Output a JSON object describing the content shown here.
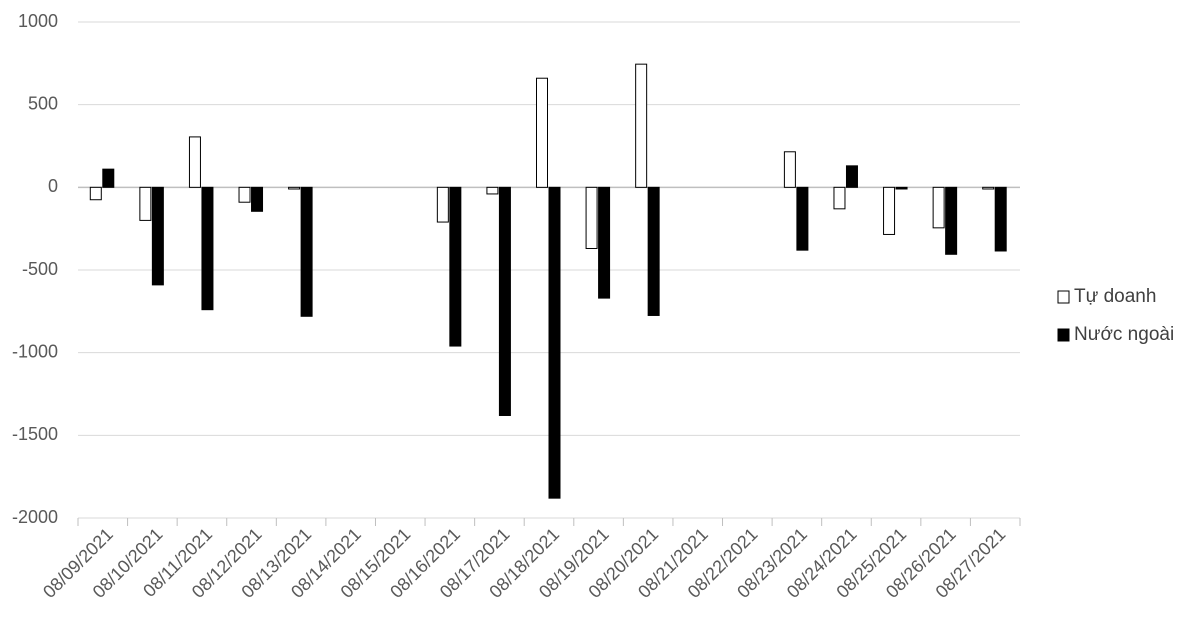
{
  "chart_data": {
    "type": "bar",
    "categories": [
      "08/09/2021",
      "08/10/2021",
      "08/11/2021",
      "08/12/2021",
      "08/13/2021",
      "08/14/2021",
      "08/15/2021",
      "08/16/2021",
      "08/17/2021",
      "08/18/2021",
      "08/19/2021",
      "08/20/2021",
      "08/21/2021",
      "08/22/2021",
      "08/23/2021",
      "08/24/2021",
      "08/25/2021",
      "08/26/2021",
      "08/27/2021"
    ],
    "series": [
      {
        "name": "Tự doanh",
        "color": "#ffffff",
        "values": [
          -75,
          -200,
          305,
          -90,
          -10,
          null,
          null,
          -210,
          -40,
          660,
          -370,
          745,
          null,
          null,
          215,
          -130,
          -285,
          -245,
          -10
        ]
      },
      {
        "name": "Nước ngoài",
        "color": "#000000",
        "values": [
          110,
          -590,
          -740,
          -145,
          -780,
          null,
          null,
          -960,
          -1380,
          -1880,
          -670,
          -775,
          null,
          null,
          -380,
          130,
          -10,
          -405,
          -385
        ]
      }
    ],
    "ylim": [
      -2000,
      1000
    ],
    "yticks": [
      -2000,
      -1500,
      -1000,
      -500,
      0,
      500,
      1000
    ],
    "grid": true,
    "legend": "right"
  }
}
